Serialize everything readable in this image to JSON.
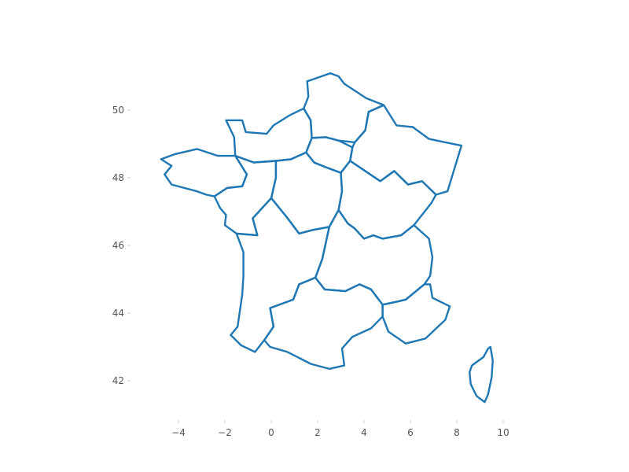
{
  "chart_data": {
    "type": "map",
    "title": "",
    "xlabel": "",
    "ylabel": "",
    "xlim": [
      -5.5,
      10.4
    ],
    "ylim": [
      41.0,
      51.6
    ],
    "grid": false,
    "x_ticks": [
      {
        "value": -4,
        "label": "−4"
      },
      {
        "value": -2,
        "label": "−2"
      },
      {
        "value": 0,
        "label": "0"
      },
      {
        "value": 2,
        "label": "2"
      },
      {
        "value": 4,
        "label": "4"
      },
      {
        "value": 6,
        "label": "6"
      },
      {
        "value": 8,
        "label": "8"
      },
      {
        "value": 10,
        "label": "10"
      }
    ],
    "y_ticks": [
      {
        "value": 42,
        "label": "42"
      },
      {
        "value": 44,
        "label": "44"
      },
      {
        "value": 46,
        "label": "46"
      },
      {
        "value": 48,
        "label": "48"
      },
      {
        "value": 50,
        "label": "50"
      }
    ],
    "stroke_color": "#1f77b4",
    "regions": [
      {
        "id": "hauts-de-france",
        "points": [
          [
            1.55,
            50.85
          ],
          [
            2.55,
            51.09
          ],
          [
            2.9,
            51.0
          ],
          [
            3.15,
            50.78
          ],
          [
            4.1,
            50.35
          ],
          [
            4.85,
            50.15
          ],
          [
            4.2,
            49.95
          ],
          [
            4.05,
            49.4
          ],
          [
            3.6,
            49.05
          ],
          [
            2.9,
            49.1
          ],
          [
            2.35,
            49.2
          ],
          [
            1.75,
            49.18
          ],
          [
            1.7,
            49.7
          ],
          [
            1.4,
            50.05
          ],
          [
            1.6,
            50.4
          ],
          [
            1.55,
            50.85
          ]
        ]
      },
      {
        "id": "normandie",
        "points": [
          [
            1.4,
            50.05
          ],
          [
            0.8,
            49.85
          ],
          [
            0.1,
            49.55
          ],
          [
            -0.2,
            49.3
          ],
          [
            -1.1,
            49.35
          ],
          [
            -1.25,
            49.7
          ],
          [
            -1.95,
            49.7
          ],
          [
            -1.6,
            49.2
          ],
          [
            -1.55,
            48.65
          ],
          [
            -0.75,
            48.45
          ],
          [
            0.2,
            48.5
          ],
          [
            0.85,
            48.55
          ],
          [
            1.5,
            48.75
          ],
          [
            1.75,
            49.18
          ],
          [
            1.7,
            49.7
          ],
          [
            1.4,
            50.05
          ]
        ]
      },
      {
        "id": "ile-de-france",
        "points": [
          [
            1.75,
            49.18
          ],
          [
            2.35,
            49.2
          ],
          [
            2.9,
            49.1
          ],
          [
            3.5,
            48.9
          ],
          [
            3.4,
            48.5
          ],
          [
            3.0,
            48.15
          ],
          [
            2.4,
            48.3
          ],
          [
            1.85,
            48.45
          ],
          [
            1.5,
            48.75
          ],
          [
            1.75,
            49.18
          ]
        ]
      },
      {
        "id": "grand-est",
        "points": [
          [
            4.85,
            50.15
          ],
          [
            5.4,
            49.55
          ],
          [
            6.1,
            49.5
          ],
          [
            6.8,
            49.15
          ],
          [
            7.5,
            49.05
          ],
          [
            8.2,
            48.95
          ],
          [
            7.6,
            47.6
          ],
          [
            7.1,
            47.5
          ],
          [
            6.5,
            47.9
          ],
          [
            5.9,
            47.8
          ],
          [
            5.3,
            48.2
          ],
          [
            4.7,
            47.9
          ],
          [
            3.4,
            48.5
          ],
          [
            3.5,
            48.9
          ],
          [
            3.6,
            49.05
          ],
          [
            4.05,
            49.4
          ],
          [
            4.2,
            49.95
          ],
          [
            4.85,
            50.15
          ]
        ]
      },
      {
        "id": "bretagne",
        "points": [
          [
            -1.55,
            48.65
          ],
          [
            -2.3,
            48.65
          ],
          [
            -3.2,
            48.85
          ],
          [
            -4.15,
            48.7
          ],
          [
            -4.75,
            48.55
          ],
          [
            -4.3,
            48.35
          ],
          [
            -4.6,
            48.1
          ],
          [
            -4.3,
            47.8
          ],
          [
            -3.2,
            47.6
          ],
          [
            -2.8,
            47.5
          ],
          [
            -2.45,
            47.45
          ],
          [
            -1.9,
            47.7
          ],
          [
            -1.25,
            47.75
          ],
          [
            -1.05,
            48.1
          ],
          [
            -1.55,
            48.65
          ]
        ]
      },
      {
        "id": "pays-de-la-loire",
        "points": [
          [
            -1.05,
            48.1
          ],
          [
            -1.25,
            47.75
          ],
          [
            -1.9,
            47.7
          ],
          [
            -2.45,
            47.45
          ],
          [
            -2.2,
            47.1
          ],
          [
            -1.95,
            46.9
          ],
          [
            -2.0,
            46.6
          ],
          [
            -1.5,
            46.35
          ],
          [
            -0.6,
            46.3
          ],
          [
            -0.8,
            46.8
          ],
          [
            0.0,
            47.4
          ],
          [
            0.2,
            48.0
          ],
          [
            0.2,
            48.5
          ],
          [
            -0.75,
            48.45
          ],
          [
            -1.55,
            48.65
          ],
          [
            -1.05,
            48.1
          ]
        ]
      },
      {
        "id": "centre-val-de-loire",
        "points": [
          [
            0.2,
            48.5
          ],
          [
            0.85,
            48.55
          ],
          [
            1.5,
            48.75
          ],
          [
            1.85,
            48.45
          ],
          [
            2.4,
            48.3
          ],
          [
            3.0,
            48.15
          ],
          [
            3.05,
            47.6
          ],
          [
            2.9,
            47.05
          ],
          [
            2.5,
            46.55
          ],
          [
            1.75,
            46.45
          ],
          [
            1.2,
            46.35
          ],
          [
            0.65,
            46.85
          ],
          [
            0.0,
            47.4
          ],
          [
            0.2,
            48.0
          ],
          [
            0.2,
            48.5
          ]
        ]
      },
      {
        "id": "bourgogne-franche-comte",
        "points": [
          [
            3.0,
            48.15
          ],
          [
            3.4,
            48.5
          ],
          [
            4.7,
            47.9
          ],
          [
            5.3,
            48.2
          ],
          [
            5.9,
            47.8
          ],
          [
            6.5,
            47.9
          ],
          [
            7.1,
            47.5
          ],
          [
            6.9,
            47.25
          ],
          [
            6.15,
            46.6
          ],
          [
            5.6,
            46.3
          ],
          [
            4.8,
            46.2
          ],
          [
            4.4,
            46.3
          ],
          [
            4.0,
            46.2
          ],
          [
            3.6,
            46.5
          ],
          [
            3.3,
            46.65
          ],
          [
            2.9,
            47.05
          ],
          [
            3.05,
            47.6
          ],
          [
            3.0,
            48.15
          ]
        ]
      },
      {
        "id": "nouvelle-aquitaine",
        "points": [
          [
            -1.5,
            46.35
          ],
          [
            -1.2,
            45.8
          ],
          [
            -1.2,
            45.1
          ],
          [
            -1.25,
            44.55
          ],
          [
            -1.45,
            43.6
          ],
          [
            -1.75,
            43.35
          ],
          [
            -1.3,
            43.05
          ],
          [
            -0.7,
            42.85
          ],
          [
            -0.3,
            43.2
          ],
          [
            0.1,
            43.6
          ],
          [
            -0.05,
            44.15
          ],
          [
            0.95,
            44.4
          ],
          [
            1.2,
            44.85
          ],
          [
            1.9,
            45.05
          ],
          [
            2.2,
            45.6
          ],
          [
            2.5,
            46.55
          ],
          [
            1.75,
            46.45
          ],
          [
            1.2,
            46.35
          ],
          [
            0.65,
            46.85
          ],
          [
            0.0,
            47.4
          ],
          [
            -0.8,
            46.8
          ],
          [
            -0.6,
            46.3
          ],
          [
            -1.5,
            46.35
          ]
        ]
      },
      {
        "id": "auvergne-rhone-alpes",
        "points": [
          [
            2.5,
            46.55
          ],
          [
            2.9,
            47.05
          ],
          [
            3.3,
            46.65
          ],
          [
            3.6,
            46.5
          ],
          [
            4.0,
            46.2
          ],
          [
            4.4,
            46.3
          ],
          [
            4.8,
            46.2
          ],
          [
            5.6,
            46.3
          ],
          [
            6.15,
            46.6
          ],
          [
            6.8,
            46.2
          ],
          [
            6.95,
            45.65
          ],
          [
            6.85,
            45.1
          ],
          [
            6.6,
            44.85
          ],
          [
            5.8,
            44.4
          ],
          [
            5.5,
            44.35
          ],
          [
            4.8,
            44.25
          ],
          [
            4.3,
            44.7
          ],
          [
            3.8,
            44.85
          ],
          [
            3.2,
            44.65
          ],
          [
            2.3,
            44.7
          ],
          [
            1.9,
            45.05
          ],
          [
            2.2,
            45.6
          ],
          [
            2.5,
            46.55
          ]
        ]
      },
      {
        "id": "occitanie",
        "points": [
          [
            -0.3,
            43.2
          ],
          [
            -0.05,
            43.0
          ],
          [
            0.7,
            42.85
          ],
          [
            1.7,
            42.5
          ],
          [
            2.5,
            42.35
          ],
          [
            3.15,
            42.45
          ],
          [
            3.05,
            42.95
          ],
          [
            3.5,
            43.3
          ],
          [
            4.3,
            43.55
          ],
          [
            4.8,
            43.9
          ],
          [
            4.8,
            44.25
          ],
          [
            4.3,
            44.7
          ],
          [
            3.8,
            44.85
          ],
          [
            3.2,
            44.65
          ],
          [
            2.3,
            44.7
          ],
          [
            1.9,
            45.05
          ],
          [
            1.2,
            44.85
          ],
          [
            0.95,
            44.4
          ],
          [
            -0.05,
            44.15
          ],
          [
            0.1,
            43.6
          ],
          [
            -0.3,
            43.2
          ]
        ]
      },
      {
        "id": "provence-alpes-cote-dazur",
        "points": [
          [
            4.8,
            43.9
          ],
          [
            5.05,
            43.45
          ],
          [
            5.8,
            43.1
          ],
          [
            6.65,
            43.25
          ],
          [
            7.5,
            43.8
          ],
          [
            7.7,
            44.2
          ],
          [
            6.95,
            44.45
          ],
          [
            6.85,
            44.85
          ],
          [
            6.6,
            44.85
          ],
          [
            5.8,
            44.4
          ],
          [
            5.5,
            44.35
          ],
          [
            4.8,
            44.25
          ],
          [
            4.8,
            43.9
          ]
        ]
      },
      {
        "id": "corse",
        "points": [
          [
            9.45,
            43.0
          ],
          [
            9.55,
            42.6
          ],
          [
            9.5,
            42.1
          ],
          [
            9.35,
            41.6
          ],
          [
            9.2,
            41.37
          ],
          [
            8.85,
            41.55
          ],
          [
            8.6,
            41.9
          ],
          [
            8.55,
            42.25
          ],
          [
            8.65,
            42.45
          ],
          [
            9.15,
            42.7
          ],
          [
            9.35,
            42.95
          ],
          [
            9.45,
            43.0
          ]
        ]
      }
    ]
  }
}
